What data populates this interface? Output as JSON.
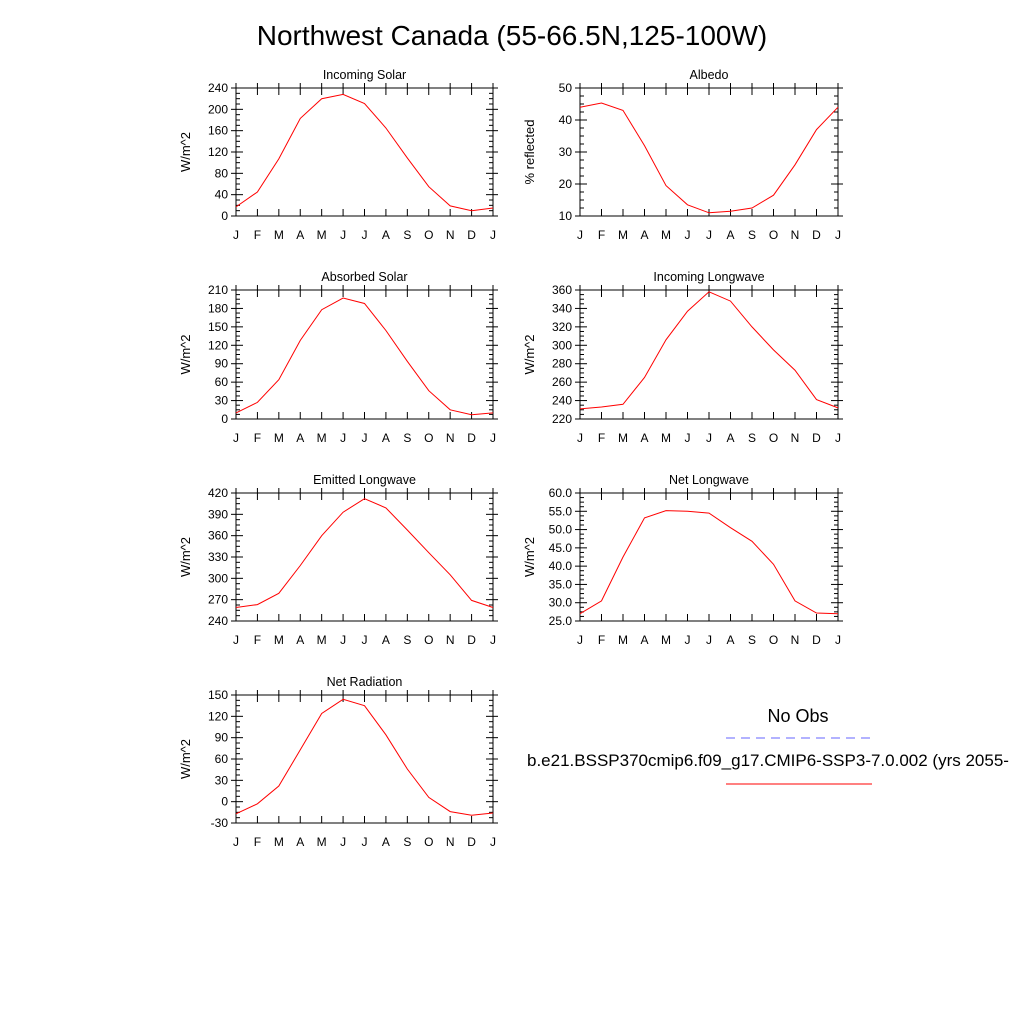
{
  "title": "Northwest Canada (55-66.5N,125-100W)",
  "months": [
    "J",
    "F",
    "M",
    "A",
    "M",
    "J",
    "J",
    "A",
    "S",
    "O",
    "N",
    "D",
    "J"
  ],
  "legend": {
    "obs_label": "No Obs",
    "case_label": "b.e21.BSSP370cmip6.f09_g17.CMIP6-SSP3-7.0.002 (yrs 2055-",
    "obs_color": "#6666ff",
    "case_color": "#ff0000"
  },
  "chart_data": [
    {
      "type": "line",
      "title": "Incoming Solar",
      "ylabel": "W/m^2",
      "ylim": [
        0,
        240
      ],
      "yticks": [
        0,
        40,
        80,
        120,
        160,
        200,
        240
      ],
      "yformat": 0,
      "values": [
        17,
        45,
        107,
        183,
        220,
        228,
        211,
        165,
        109,
        55,
        19,
        10,
        15
      ]
    },
    {
      "type": "line",
      "title": "Albedo",
      "ylabel": "% reflected",
      "ylim": [
        10,
        50
      ],
      "yticks": [
        10,
        20,
        30,
        40,
        50
      ],
      "yformat": 0,
      "values": [
        44,
        45.3,
        43,
        32,
        19.5,
        13.5,
        11,
        11.5,
        12.5,
        16.5,
        26,
        37,
        44
      ]
    },
    {
      "type": "line",
      "title": "Absorbed Solar",
      "ylabel": "W/m^2",
      "ylim": [
        0,
        210
      ],
      "yticks": [
        0,
        30,
        60,
        90,
        120,
        150,
        180,
        210
      ],
      "yformat": 0,
      "values": [
        10,
        27,
        64,
        128,
        178,
        197,
        188,
        144,
        94,
        46,
        15,
        7,
        10
      ]
    },
    {
      "type": "line",
      "title": "Incoming Longwave",
      "ylabel": "W/m^2",
      "ylim": [
        220,
        360
      ],
      "yticks": [
        220,
        240,
        260,
        280,
        300,
        320,
        340,
        360
      ],
      "yformat": 0,
      "values": [
        231,
        233,
        236,
        265,
        306,
        337,
        358,
        348,
        320,
        295,
        273,
        241,
        232
      ]
    },
    {
      "type": "line",
      "title": "Emitted Longwave",
      "ylabel": "W/m^2",
      "ylim": [
        240,
        420
      ],
      "yticks": [
        240,
        270,
        300,
        330,
        360,
        390,
        420
      ],
      "yformat": 0,
      "values": [
        259,
        263,
        279,
        318,
        360,
        393,
        412,
        399,
        368,
        336,
        305,
        269,
        259
      ]
    },
    {
      "type": "line",
      "title": "Net Longwave",
      "ylabel": "W/m^2",
      "ylim": [
        25,
        60
      ],
      "yticks": [
        25,
        30,
        35,
        40,
        45,
        50,
        55,
        60
      ],
      "yformat": 1,
      "values": [
        27,
        30.5,
        42.5,
        53.2,
        55.2,
        55,
        54.5,
        50.5,
        46.8,
        40.5,
        30.5,
        27.2,
        27
      ]
    },
    {
      "type": "line",
      "title": "Net Radiation",
      "ylabel": "W/m^2",
      "ylim": [
        -30,
        150
      ],
      "yticks": [
        -30,
        0,
        30,
        60,
        90,
        120,
        150
      ],
      "yformat": 0,
      "values": [
        -17,
        -3,
        22,
        73,
        124,
        144,
        135,
        94,
        46,
        6,
        -14,
        -19,
        -16
      ]
    }
  ]
}
